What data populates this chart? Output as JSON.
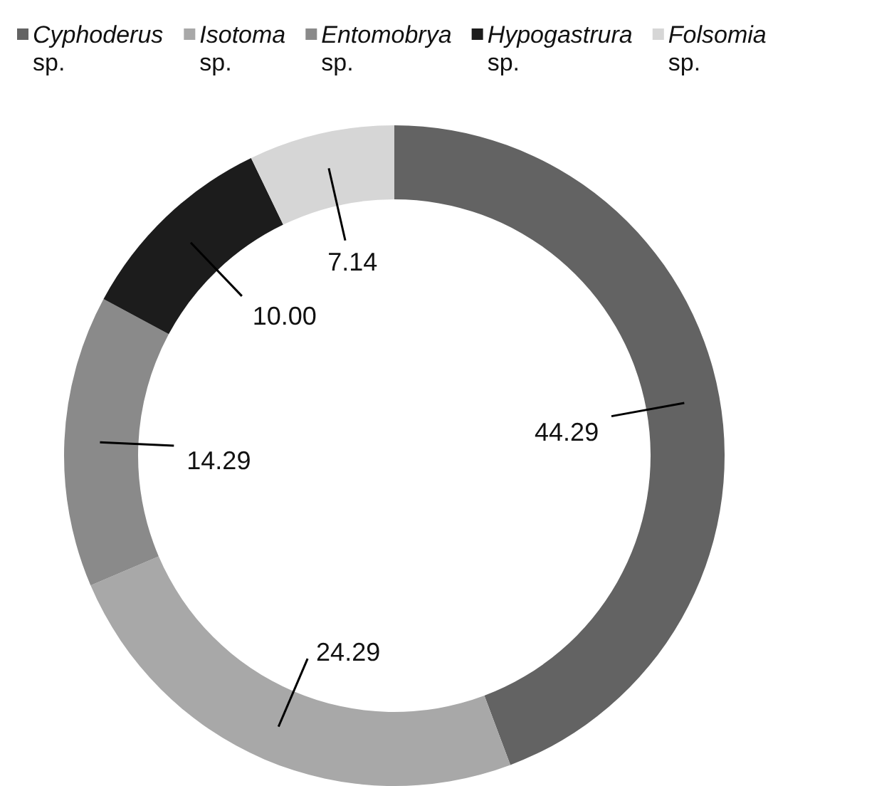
{
  "chart_data": {
    "type": "donut",
    "categories": [
      "Cyphoderus sp.",
      "Isotoma sp.",
      "Entomobrya sp.",
      "Hypogastrura sp.",
      "Folsomia sp."
    ],
    "values": [
      44.29,
      24.29,
      14.29,
      10.0,
      7.14
    ],
    "colors": [
      "#636363",
      "#a8a8a8",
      "#8a8a8a",
      "#1c1c1c",
      "#d6d6d6"
    ],
    "value_labels": [
      "44.29",
      "24.29",
      "14.29",
      "10.00",
      "7.14"
    ],
    "legend": "top"
  }
}
